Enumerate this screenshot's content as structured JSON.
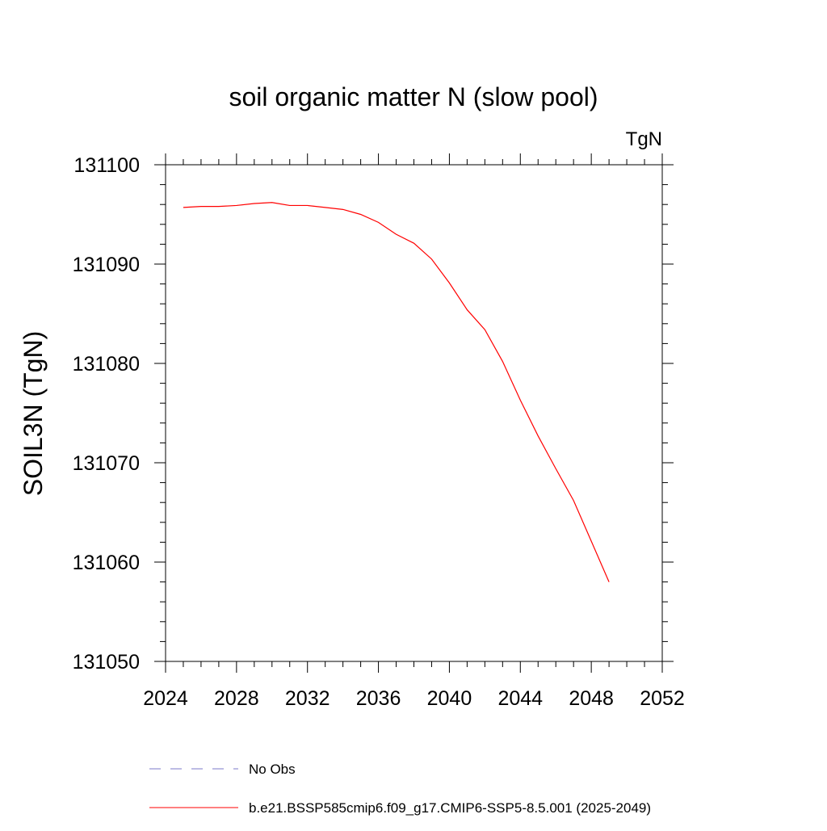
{
  "chart_data": {
    "type": "line",
    "title": "soil organic matter N (slow pool)",
    "units_label": "TgN",
    "ylabel": "SOIL3N  (TgN)",
    "xlabel": "",
    "xlim": [
      2024,
      2052
    ],
    "ylim": [
      131050,
      131100
    ],
    "x_ticks": [
      2024,
      2028,
      2032,
      2036,
      2040,
      2044,
      2048,
      2052
    ],
    "y_ticks": [
      131050,
      131060,
      131070,
      131080,
      131090,
      131100
    ],
    "x_tick_labels": [
      "2024",
      "2028",
      "2032",
      "2036",
      "2040",
      "2044",
      "2048",
      "2052"
    ],
    "y_tick_labels": [
      "131050",
      "131060",
      "131070",
      "131080",
      "131090",
      "131100"
    ],
    "x_minor_step": 1,
    "y_minor_step": 2,
    "grid": false,
    "legend_position": "bottom",
    "legend": [
      {
        "label": "No Obs",
        "color": "#7b78c8",
        "dash": true
      },
      {
        "label": "b.e21.BSSP585cmip6.f09_g17.CMIP6-SSP5-8.5.001 (2025-2049)",
        "color": "#ff0000",
        "dash": false
      }
    ],
    "series": [
      {
        "name": "b.e21.BSSP585cmip6.f09_g17.CMIP6-SSP5-8.5.001 (2025-2049)",
        "color": "#ff0000",
        "x": [
          2025,
          2026,
          2027,
          2028,
          2029,
          2030,
          2031,
          2032,
          2033,
          2034,
          2035,
          2036,
          2037,
          2038,
          2039,
          2040,
          2041,
          2042,
          2043,
          2044,
          2045,
          2046,
          2047,
          2048,
          2049
        ],
        "y": [
          131095.7,
          131095.8,
          131095.8,
          131095.9,
          131096.1,
          131096.2,
          131095.9,
          131095.9,
          131095.7,
          131095.5,
          131095.0,
          131094.2,
          131093.0,
          131092.1,
          131090.5,
          131088.1,
          131085.4,
          131083.4,
          131080.2,
          131076.3,
          131072.7,
          131069.4,
          131066.2,
          131062.1,
          131058.0
        ]
      }
    ]
  }
}
